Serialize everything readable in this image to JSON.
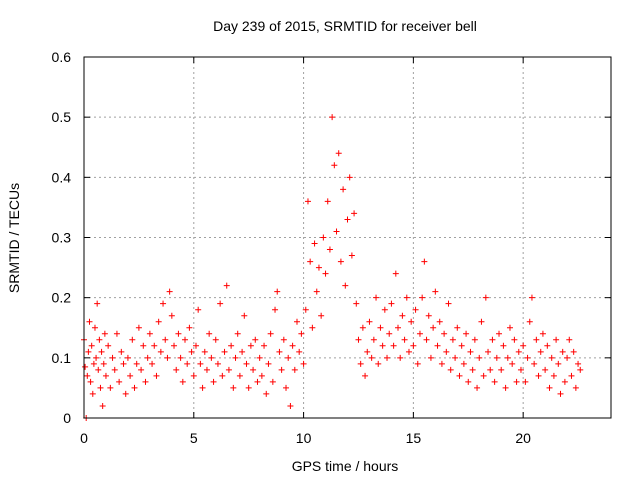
{
  "chart_data": {
    "type": "scatter",
    "title": "Day 239 of 2015, SRMTID for receiver bell",
    "xlabel": "GPS time / hours",
    "ylabel": "SRMTID / TECUs",
    "xlim": [
      0,
      24
    ],
    "ylim": [
      0,
      0.6
    ],
    "xticks": [
      0,
      5,
      10,
      15,
      20
    ],
    "xtick_labels": [
      "0",
      "5",
      "10",
      "15",
      "20"
    ],
    "yticks": [
      0,
      0.1,
      0.2,
      0.3,
      0.4,
      0.5,
      0.6
    ],
    "ytick_labels": [
      "0",
      "0.1",
      "0.2",
      "0.3",
      "0.4",
      "0.5",
      "0.6"
    ],
    "grid": true,
    "marker": "+",
    "marker_color": "#ff0000",
    "series": [
      {
        "name": "SRMTID",
        "points": [
          [
            0.0,
            0.13
          ],
          [
            0.05,
            0.085
          ],
          [
            0.1,
            0.0
          ],
          [
            0.15,
            0.07
          ],
          [
            0.2,
            0.11
          ],
          [
            0.25,
            0.16
          ],
          [
            0.3,
            0.06
          ],
          [
            0.35,
            0.12
          ],
          [
            0.4,
            0.04
          ],
          [
            0.45,
            0.09
          ],
          [
            0.5,
            0.15
          ],
          [
            0.55,
            0.1
          ],
          [
            0.6,
            0.19
          ],
          [
            0.65,
            0.08
          ],
          [
            0.7,
            0.13
          ],
          [
            0.75,
            0.05
          ],
          [
            0.8,
            0.11
          ],
          [
            0.85,
            0.02
          ],
          [
            0.9,
            0.09
          ],
          [
            0.95,
            0.14
          ],
          [
            1.0,
            0.07
          ],
          [
            1.1,
            0.12
          ],
          [
            1.2,
            0.05
          ],
          [
            1.3,
            0.1
          ],
          [
            1.4,
            0.08
          ],
          [
            1.5,
            0.14
          ],
          [
            1.6,
            0.06
          ],
          [
            1.7,
            0.11
          ],
          [
            1.8,
            0.09
          ],
          [
            1.9,
            0.04
          ],
          [
            2.0,
            0.1
          ],
          [
            2.1,
            0.07
          ],
          [
            2.2,
            0.13
          ],
          [
            2.3,
            0.05
          ],
          [
            2.4,
            0.09
          ],
          [
            2.5,
            0.15
          ],
          [
            2.6,
            0.08
          ],
          [
            2.7,
            0.12
          ],
          [
            2.8,
            0.06
          ],
          [
            2.9,
            0.1
          ],
          [
            3.0,
            0.14
          ],
          [
            3.1,
            0.09
          ],
          [
            3.2,
            0.12
          ],
          [
            3.3,
            0.07
          ],
          [
            3.4,
            0.16
          ],
          [
            3.5,
            0.11
          ],
          [
            3.6,
            0.19
          ],
          [
            3.7,
            0.13
          ],
          [
            3.8,
            0.1
          ],
          [
            3.9,
            0.21
          ],
          [
            4.0,
            0.17
          ],
          [
            4.1,
            0.12
          ],
          [
            4.2,
            0.08
          ],
          [
            4.3,
            0.14
          ],
          [
            4.4,
            0.1
          ],
          [
            4.5,
            0.06
          ],
          [
            4.6,
            0.13
          ],
          [
            4.7,
            0.09
          ],
          [
            4.8,
            0.15
          ],
          [
            4.9,
            0.11
          ],
          [
            5.0,
            0.07
          ],
          [
            5.1,
            0.12
          ],
          [
            5.2,
            0.18
          ],
          [
            5.3,
            0.09
          ],
          [
            5.4,
            0.05
          ],
          [
            5.5,
            0.11
          ],
          [
            5.6,
            0.08
          ],
          [
            5.7,
            0.14
          ],
          [
            5.8,
            0.1
          ],
          [
            5.9,
            0.06
          ],
          [
            6.0,
            0.13
          ],
          [
            6.1,
            0.09
          ],
          [
            6.2,
            0.19
          ],
          [
            6.3,
            0.07
          ],
          [
            6.4,
            0.11
          ],
          [
            6.5,
            0.22
          ],
          [
            6.6,
            0.08
          ],
          [
            6.7,
            0.12
          ],
          [
            6.8,
            0.05
          ],
          [
            6.9,
            0.1
          ],
          [
            7.0,
            0.14
          ],
          [
            7.1,
            0.07
          ],
          [
            7.2,
            0.11
          ],
          [
            7.3,
            0.17
          ],
          [
            7.4,
            0.09
          ],
          [
            7.5,
            0.05
          ],
          [
            7.6,
            0.12
          ],
          [
            7.7,
            0.08
          ],
          [
            7.8,
            0.13
          ],
          [
            7.9,
            0.06
          ],
          [
            8.0,
            0.1
          ],
          [
            8.1,
            0.07
          ],
          [
            8.2,
            0.12
          ],
          [
            8.3,
            0.04
          ],
          [
            8.4,
            0.09
          ],
          [
            8.5,
            0.14
          ],
          [
            8.6,
            0.06
          ],
          [
            8.7,
            0.18
          ],
          [
            8.8,
            0.21
          ],
          [
            8.9,
            0.11
          ],
          [
            9.0,
            0.08
          ],
          [
            9.1,
            0.13
          ],
          [
            9.2,
            0.05
          ],
          [
            9.3,
            0.1
          ],
          [
            9.4,
            0.02
          ],
          [
            9.5,
            0.12
          ],
          [
            9.6,
            0.08
          ],
          [
            9.7,
            0.16
          ],
          [
            9.8,
            0.11
          ],
          [
            9.9,
            0.14
          ],
          [
            10.0,
            0.09
          ],
          [
            10.1,
            0.18
          ],
          [
            10.2,
            0.36
          ],
          [
            10.3,
            0.26
          ],
          [
            10.4,
            0.15
          ],
          [
            10.5,
            0.29
          ],
          [
            10.6,
            0.21
          ],
          [
            10.7,
            0.25
          ],
          [
            10.8,
            0.17
          ],
          [
            10.9,
            0.3
          ],
          [
            11.0,
            0.24
          ],
          [
            11.1,
            0.36
          ],
          [
            11.2,
            0.28
          ],
          [
            11.3,
            0.5
          ],
          [
            11.4,
            0.42
          ],
          [
            11.5,
            0.31
          ],
          [
            11.6,
            0.44
          ],
          [
            11.7,
            0.26
          ],
          [
            11.8,
            0.38
          ],
          [
            11.9,
            0.22
          ],
          [
            12.0,
            0.33
          ],
          [
            12.1,
            0.4
          ],
          [
            12.2,
            0.27
          ],
          [
            12.3,
            0.34
          ],
          [
            12.4,
            0.19
          ],
          [
            12.5,
            0.13
          ],
          [
            12.6,
            0.09
          ],
          [
            12.7,
            0.15
          ],
          [
            12.8,
            0.07
          ],
          [
            12.9,
            0.11
          ],
          [
            13.0,
            0.16
          ],
          [
            13.1,
            0.1
          ],
          [
            13.2,
            0.13
          ],
          [
            13.3,
            0.2
          ],
          [
            13.4,
            0.09
          ],
          [
            13.5,
            0.15
          ],
          [
            13.6,
            0.12
          ],
          [
            13.7,
            0.18
          ],
          [
            13.8,
            0.1
          ],
          [
            13.9,
            0.14
          ],
          [
            14.0,
            0.19
          ],
          [
            14.1,
            0.12
          ],
          [
            14.2,
            0.24
          ],
          [
            14.3,
            0.15
          ],
          [
            14.4,
            0.1
          ],
          [
            14.5,
            0.17
          ],
          [
            14.6,
            0.13
          ],
          [
            14.7,
            0.2
          ],
          [
            14.8,
            0.11
          ],
          [
            14.9,
            0.16
          ],
          [
            15.0,
            0.12
          ],
          [
            15.1,
            0.18
          ],
          [
            15.2,
            0.09
          ],
          [
            15.3,
            0.14
          ],
          [
            15.4,
            0.2
          ],
          [
            15.5,
            0.26
          ],
          [
            15.6,
            0.13
          ],
          [
            15.7,
            0.17
          ],
          [
            15.8,
            0.1
          ],
          [
            15.9,
            0.15
          ],
          [
            16.0,
            0.21
          ],
          [
            16.1,
            0.12
          ],
          [
            16.2,
            0.16
          ],
          [
            16.3,
            0.09
          ],
          [
            16.4,
            0.14
          ],
          [
            16.5,
            0.11
          ],
          [
            16.6,
            0.19
          ],
          [
            16.7,
            0.08
          ],
          [
            16.8,
            0.13
          ],
          [
            16.9,
            0.1
          ],
          [
            17.0,
            0.15
          ],
          [
            17.1,
            0.07
          ],
          [
            17.2,
            0.12
          ],
          [
            17.3,
            0.09
          ],
          [
            17.4,
            0.14
          ],
          [
            17.5,
            0.06
          ],
          [
            17.6,
            0.11
          ],
          [
            17.7,
            0.08
          ],
          [
            17.8,
            0.13
          ],
          [
            17.9,
            0.05
          ],
          [
            18.0,
            0.1
          ],
          [
            18.1,
            0.16
          ],
          [
            18.2,
            0.07
          ],
          [
            18.3,
            0.2
          ],
          [
            18.4,
            0.11
          ],
          [
            18.5,
            0.08
          ],
          [
            18.6,
            0.13
          ],
          [
            18.7,
            0.06
          ],
          [
            18.8,
            0.1
          ],
          [
            18.9,
            0.14
          ],
          [
            19.0,
            0.08
          ],
          [
            19.1,
            0.12
          ],
          [
            19.2,
            0.05
          ],
          [
            19.3,
            0.1
          ],
          [
            19.4,
            0.15
          ],
          [
            19.5,
            0.09
          ],
          [
            19.6,
            0.13
          ],
          [
            19.7,
            0.06
          ],
          [
            19.8,
            0.11
          ],
          [
            19.9,
            0.08
          ],
          [
            20.0,
            0.12
          ],
          [
            20.1,
            0.06
          ],
          [
            20.2,
            0.1
          ],
          [
            20.3,
            0.16
          ],
          [
            20.4,
            0.2
          ],
          [
            20.5,
            0.09
          ],
          [
            20.6,
            0.13
          ],
          [
            20.7,
            0.07
          ],
          [
            20.8,
            0.11
          ],
          [
            20.9,
            0.14
          ],
          [
            21.0,
            0.08
          ],
          [
            21.1,
            0.12
          ],
          [
            21.2,
            0.05
          ],
          [
            21.3,
            0.1
          ],
          [
            21.4,
            0.07
          ],
          [
            21.5,
            0.13
          ],
          [
            21.6,
            0.09
          ],
          [
            21.7,
            0.04
          ],
          [
            21.8,
            0.11
          ],
          [
            21.9,
            0.06
          ],
          [
            22.0,
            0.1
          ],
          [
            22.1,
            0.13
          ],
          [
            22.2,
            0.07
          ],
          [
            22.3,
            0.11
          ],
          [
            22.4,
            0.05
          ],
          [
            22.5,
            0.09
          ],
          [
            22.6,
            0.08
          ]
        ]
      }
    ]
  }
}
